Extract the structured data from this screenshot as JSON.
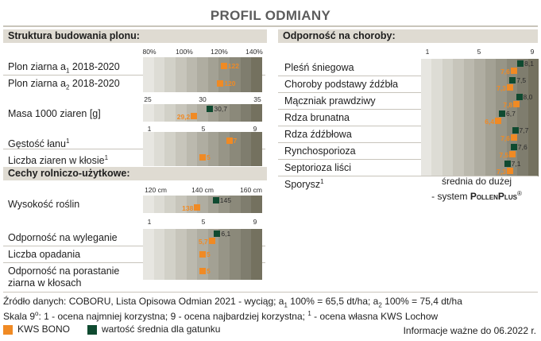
{
  "title": "PROFIL ODMIANY",
  "colors": {
    "own": "#f08a24",
    "avg": "#0f4a30",
    "bar_steps": [
      "#e7e6e1",
      "#dddcd5",
      "#d2d1c8",
      "#c7c5bb",
      "#bbb9ae",
      "#afada1",
      "#a3a194",
      "#979587",
      "#8b897a",
      "#7f7d6e",
      "#74715f"
    ]
  },
  "left": {
    "section1": "Struktura budowania plonu:",
    "section2": "Cechy rolniczo-użytkowe:",
    "scales": {
      "percent": [
        "80%",
        "100%",
        "120%",
        "140%"
      ],
      "mass": [
        "25",
        "30",
        "35"
      ],
      "nine": [
        "1",
        "5",
        "9"
      ],
      "height": [
        "120 cm",
        "140 cm",
        "160 cm"
      ]
    },
    "rows": {
      "plon_a1": {
        "label_pre": "Plon ziarna a",
        "sub": "1",
        "label_post": " 2018-2020",
        "own_label": "122",
        "own": 122,
        "min": 80,
        "max": 140
      },
      "plon_a2": {
        "label_pre": "Plon ziarna a",
        "sub": "2",
        "label_post": " 2018-2020",
        "own_label": "120",
        "own": 120,
        "min": 80,
        "max": 140
      },
      "masa": {
        "label": "Masa 1000 ziaren [g]",
        "own_label": "29,2",
        "own": 29.2,
        "avg_label": "30,7",
        "avg": 30.7,
        "min": 25,
        "max": 35
      },
      "gestosc": {
        "label_pre": "Gęstość łanu",
        "sup": "1",
        "own_label": "7",
        "own": 7,
        "min": 1,
        "max": 9
      },
      "liczba_ziaren": {
        "label_pre": "Liczba ziaren w kłosie",
        "sup": "1",
        "own_label": "5",
        "own": 5,
        "min": 1,
        "max": 9
      },
      "wysokosc": {
        "label": "Wysokość roślin",
        "own_label": "138",
        "own": 138,
        "avg_label": "145",
        "avg": 145,
        "min": 120,
        "max": 160
      },
      "wyleganie": {
        "label": "Odporność na wyleganie",
        "own_label": "5,7",
        "own": 5.7,
        "avg_label": "6,1",
        "avg": 6.1,
        "min": 1,
        "max": 9
      },
      "opadania": {
        "label": "Liczba opadania",
        "own_label": "5",
        "own": 5,
        "min": 1,
        "max": 9
      },
      "porastanie": {
        "label": "Odporność na porastanie",
        "label2": "ziarna w kłosach",
        "own_label": "5",
        "own": 5,
        "min": 1,
        "max": 9
      }
    }
  },
  "right": {
    "section": "Odporność na choroby:",
    "scale": [
      "1",
      "5",
      "9"
    ],
    "rows": [
      {
        "label": "Pleśń śniegowa",
        "own_label": "7,6",
        "own": 7.6,
        "avg_label": "8,1",
        "avg": 8.1
      },
      {
        "label": "Choroby podstawy źdźbła",
        "own_label": "7,3",
        "own": 7.3,
        "avg_label": "7,5",
        "avg": 7.5
      },
      {
        "label": "Mączniak prawdziwy",
        "own_label": "7,8",
        "own": 7.8,
        "avg_label": "8,0",
        "avg": 8.0
      },
      {
        "label": "Rdza brunatna",
        "own_label": "6,4",
        "own": 6.4,
        "avg_label": "6,7",
        "avg": 6.7
      },
      {
        "label": "Rdza źdźbłowa",
        "own_label": "7,6",
        "own": 7.6,
        "avg_label": "7,7",
        "avg": 7.7
      },
      {
        "label": "Rynchosporioza",
        "own_label": "7,5",
        "own": 7.5,
        "avg_label": "7,6",
        "avg": 7.6
      },
      {
        "label": "Septorioza liści",
        "own_label": "7,3",
        "own": 7.3,
        "avg_label": "7,1",
        "avg": 7.1
      }
    ],
    "sporysz_label_pre": "Sporysz",
    "sporysz_sup": "1",
    "sporysz_note1": "średnia do dużej",
    "sporysz_note2_pre": "- system ",
    "sporysz_note2_brand": "PollenPlus",
    "sporysz_note2_reg": "®"
  },
  "footer": {
    "source_pre": "Źródło danych: COBORU, Lista Opisowa Odmian 2021 - wyciąg; a",
    "source_sub1": "1",
    "source_mid": " 100% = 65,5 dt/ha; a",
    "source_sub2": "2",
    "source_post": " 100% = 75,4 dt/ha",
    "scale_pre": "Skala 9",
    "scale_sup": "o",
    "scale_mid": ": 1 - ocena najmniej korzystna; 9 - ocena najbardziej korzystna; ",
    "scale_sup2": "1",
    "scale_post": " - ocena własna KWS Lochow",
    "legend_own": "KWS BONO",
    "legend_avg": "wartość średnia dla gatunku",
    "info": "Informacje ważne do 06.2022 r."
  }
}
